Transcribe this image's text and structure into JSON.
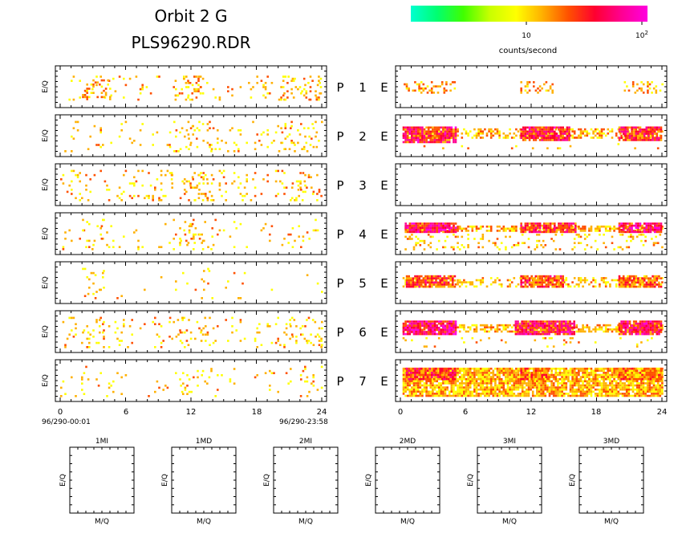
{
  "header": {
    "title_line1": "Orbit 2 G",
    "title_line2": "PLS96290.RDR"
  },
  "colorbar": {
    "colors": [
      "#00ffd0",
      "#00ff70",
      "#40ff00",
      "#c8ff00",
      "#ffff00",
      "#ffb000",
      "#ff5000",
      "#ff0030",
      "#ff0090",
      "#ff00e0"
    ],
    "tick_10": "10",
    "tick_100_base": "10",
    "tick_100_exp": "2",
    "label": "counts/second",
    "scale": "log"
  },
  "ylabel": "E/Q",
  "left_axis": {
    "ticks": [
      "0",
      "6",
      "12",
      "18",
      "24"
    ],
    "start_label": "96/290-00:01",
    "end_label": "96/290-23:58"
  },
  "right_axis": {
    "ticks": [
      "0",
      "6",
      "12",
      "18",
      "24"
    ]
  },
  "rows": [
    {
      "p": "P",
      "n": "1",
      "e": "E"
    },
    {
      "p": "P",
      "n": "2",
      "e": "E"
    },
    {
      "p": "P",
      "n": "3",
      "e": "E"
    },
    {
      "p": "P",
      "n": "4",
      "e": "E"
    },
    {
      "p": "P",
      "n": "5",
      "e": "E"
    },
    {
      "p": "P",
      "n": "6",
      "e": "E"
    },
    {
      "p": "P",
      "n": "7",
      "e": "E"
    }
  ],
  "small_panels": [
    {
      "title": "1MI",
      "xlabel": "M/Q",
      "ylabel": "E/Q"
    },
    {
      "title": "1MD",
      "xlabel": "M/Q",
      "ylabel": "E/Q"
    },
    {
      "title": "2MI",
      "xlabel": "M/Q",
      "ylabel": "E/Q"
    },
    {
      "title": "2MD",
      "xlabel": "M/Q",
      "ylabel": "E/Q"
    },
    {
      "title": "3MI",
      "xlabel": "M/Q",
      "ylabel": "E/Q"
    },
    {
      "title": "3MD",
      "xlabel": "M/Q",
      "ylabel": "E/Q"
    }
  ],
  "chart_data": {
    "type": "heatmap",
    "x_range_hours": [
      0,
      24
    ],
    "color_scale": "log counts/second (1 to 100)",
    "left_panels": [
      {
        "row": "1",
        "clusters": [
          {
            "x": [
              0,
              24
            ],
            "y": [
              0.2,
              0.85
            ],
            "intensity": 1.05,
            "density": 0.05
          },
          {
            "x": [
              2,
              4.5
            ],
            "y": [
              0.3,
              0.85
            ],
            "intensity": 1.15,
            "density": 0.2
          },
          {
            "x": [
              10.5,
              13
            ],
            "y": [
              0.2,
              0.85
            ],
            "intensity": 1.15,
            "density": 0.22
          },
          {
            "x": [
              20,
              24
            ],
            "y": [
              0.2,
              0.85
            ],
            "intensity": 1.1,
            "density": 0.12
          }
        ]
      },
      {
        "row": "2",
        "clusters": [
          {
            "x": [
              0,
              24
            ],
            "y": [
              0.1,
              0.9
            ],
            "intensity": 1.05,
            "density": 0.05
          },
          {
            "x": [
              10,
              14
            ],
            "y": [
              0.1,
              0.9
            ],
            "intensity": 1.05,
            "density": 0.08
          },
          {
            "x": [
              20,
              24
            ],
            "y": [
              0.1,
              0.9
            ],
            "intensity": 1.05,
            "density": 0.08
          }
        ]
      },
      {
        "row": "3",
        "clusters": [
          {
            "x": [
              0,
              24
            ],
            "y": [
              0.1,
              0.9
            ],
            "intensity": 1.05,
            "density": 0.07
          },
          {
            "x": [
              10,
              14
            ],
            "y": [
              0.1,
              0.9
            ],
            "intensity": 1.1,
            "density": 0.12
          },
          {
            "x": [
              21,
              24
            ],
            "y": [
              0.1,
              0.9
            ],
            "intensity": 1.1,
            "density": 0.1
          }
        ]
      },
      {
        "row": "4",
        "clusters": [
          {
            "x": [
              0,
              24
            ],
            "y": [
              0.1,
              0.9
            ],
            "intensity": 1.05,
            "density": 0.04
          },
          {
            "x": [
              2,
              4
            ],
            "y": [
              0.1,
              0.9
            ],
            "intensity": 1.05,
            "density": 0.1
          },
          {
            "x": [
              11,
              14
            ],
            "y": [
              0.1,
              0.9
            ],
            "intensity": 1.05,
            "density": 0.1
          }
        ]
      },
      {
        "row": "5",
        "clusters": [
          {
            "x": [
              0,
              24
            ],
            "y": [
              0.1,
              0.9
            ],
            "intensity": 1.05,
            "density": 0.015
          },
          {
            "x": [
              2,
              4
            ],
            "y": [
              0.1,
              0.9
            ],
            "intensity": 1.05,
            "density": 0.07
          },
          {
            "x": [
              11,
              14
            ],
            "y": [
              0.1,
              0.9
            ],
            "intensity": 1.05,
            "density": 0.05
          }
        ]
      },
      {
        "row": "6",
        "clusters": [
          {
            "x": [
              0,
              24
            ],
            "y": [
              0.1,
              0.9
            ],
            "intensity": 1.05,
            "density": 0.05
          },
          {
            "x": [
              2,
              4
            ],
            "y": [
              0.1,
              0.9
            ],
            "intensity": 1.05,
            "density": 0.1
          },
          {
            "x": [
              10,
              14
            ],
            "y": [
              0.1,
              0.9
            ],
            "intensity": 1.05,
            "density": 0.1
          },
          {
            "x": [
              21,
              24
            ],
            "y": [
              0.1,
              0.9
            ],
            "intensity": 1.05,
            "density": 0.1
          }
        ]
      },
      {
        "row": "7",
        "clusters": [
          {
            "x": [
              0,
              24
            ],
            "y": [
              0.1,
              0.9
            ],
            "intensity": 1.05,
            "density": 0.04
          },
          {
            "x": [
              11,
              13
            ],
            "y": [
              0.1,
              0.9
            ],
            "intensity": 1.05,
            "density": 0.08
          },
          {
            "x": [
              22,
              24
            ],
            "y": [
              0.1,
              0.9
            ],
            "intensity": 1.05,
            "density": 0.1
          }
        ]
      }
    ],
    "right_panels": [
      {
        "row": "1",
        "clusters": [
          {
            "x": [
              0.3,
              5
            ],
            "y": [
              0.35,
              0.65
            ],
            "intensity": 1.15,
            "density": 0.35
          },
          {
            "x": [
              11,
              14
            ],
            "y": [
              0.35,
              0.65
            ],
            "intensity": 1.1,
            "density": 0.28
          },
          {
            "x": [
              20.5,
              24
            ],
            "y": [
              0.35,
              0.65
            ],
            "intensity": 1.1,
            "density": 0.3
          }
        ]
      },
      {
        "row": "2",
        "clusters": [
          {
            "x": [
              0.2,
              24
            ],
            "y": [
              0.3,
              0.55
            ],
            "intensity": 1.1,
            "density": 0.45
          },
          {
            "x": [
              0.2,
              5
            ],
            "y": [
              0.25,
              0.65
            ],
            "intensity": 1.55,
            "density": 0.9
          },
          {
            "x": [
              11,
              15.5
            ],
            "y": [
              0.25,
              0.62
            ],
            "intensity": 1.55,
            "density": 0.9
          },
          {
            "x": [
              20,
              24
            ],
            "y": [
              0.25,
              0.62
            ],
            "intensity": 1.45,
            "density": 0.85
          },
          {
            "x": [
              0.2,
              24
            ],
            "y": [
              0.7,
              0.85
            ],
            "intensity": 1.05,
            "density": 0.05
          }
        ]
      },
      {
        "row": "3",
        "clusters": []
      },
      {
        "row": "4",
        "clusters": [
          {
            "x": [
              0.2,
              24
            ],
            "y": [
              0.28,
              0.42
            ],
            "intensity": 1.1,
            "density": 0.55
          },
          {
            "x": [
              0.4,
              5
            ],
            "y": [
              0.2,
              0.45
            ],
            "intensity": 1.6,
            "density": 0.95
          },
          {
            "x": [
              11,
              16
            ],
            "y": [
              0.2,
              0.45
            ],
            "intensity": 1.5,
            "density": 0.9
          },
          {
            "x": [
              20,
              24
            ],
            "y": [
              0.2,
              0.45
            ],
            "intensity": 1.6,
            "density": 0.9
          },
          {
            "x": [
              0.2,
              24
            ],
            "y": [
              0.5,
              0.95
            ],
            "intensity": 1.05,
            "density": 0.15
          }
        ]
      },
      {
        "row": "5",
        "clusters": [
          {
            "x": [
              0.2,
              24
            ],
            "y": [
              0.35,
              0.6
            ],
            "intensity": 1.05,
            "density": 0.4
          },
          {
            "x": [
              0.5,
              5
            ],
            "y": [
              0.3,
              0.6
            ],
            "intensity": 1.35,
            "density": 0.85
          },
          {
            "x": [
              11,
              15
            ],
            "y": [
              0.3,
              0.6
            ],
            "intensity": 1.35,
            "density": 0.85
          },
          {
            "x": [
              20,
              24
            ],
            "y": [
              0.3,
              0.6
            ],
            "intensity": 1.3,
            "density": 0.85
          }
        ]
      },
      {
        "row": "6",
        "clusters": [
          {
            "x": [
              0.2,
              24
            ],
            "y": [
              0.3,
              0.5
            ],
            "intensity": 1.1,
            "density": 0.55
          },
          {
            "x": [
              0.2,
              5
            ],
            "y": [
              0.2,
              0.55
            ],
            "intensity": 1.65,
            "density": 0.95
          },
          {
            "x": [
              10.5,
              16
            ],
            "y": [
              0.2,
              0.55
            ],
            "intensity": 1.55,
            "density": 0.9
          },
          {
            "x": [
              20,
              24
            ],
            "y": [
              0.2,
              0.55
            ],
            "intensity": 1.55,
            "density": 0.9
          },
          {
            "x": [
              0.2,
              24
            ],
            "y": [
              0.65,
              0.9
            ],
            "intensity": 1.05,
            "density": 0.05
          }
        ]
      },
      {
        "row": "7",
        "clusters": [
          {
            "x": [
              0.2,
              24
            ],
            "y": [
              0.15,
              0.9
            ],
            "intensity": 1.1,
            "density": 0.85
          },
          {
            "x": [
              0.5,
              5
            ],
            "y": [
              0.15,
              0.45
            ],
            "intensity": 1.45,
            "density": 0.9
          },
          {
            "x": [
              11,
              13.5
            ],
            "y": [
              0.15,
              0.45
            ],
            "intensity": 1.3,
            "density": 0.9
          },
          {
            "x": [
              20,
              24
            ],
            "y": [
              0.15,
              0.45
            ],
            "intensity": 1.2,
            "density": 0.9
          }
        ]
      }
    ]
  }
}
